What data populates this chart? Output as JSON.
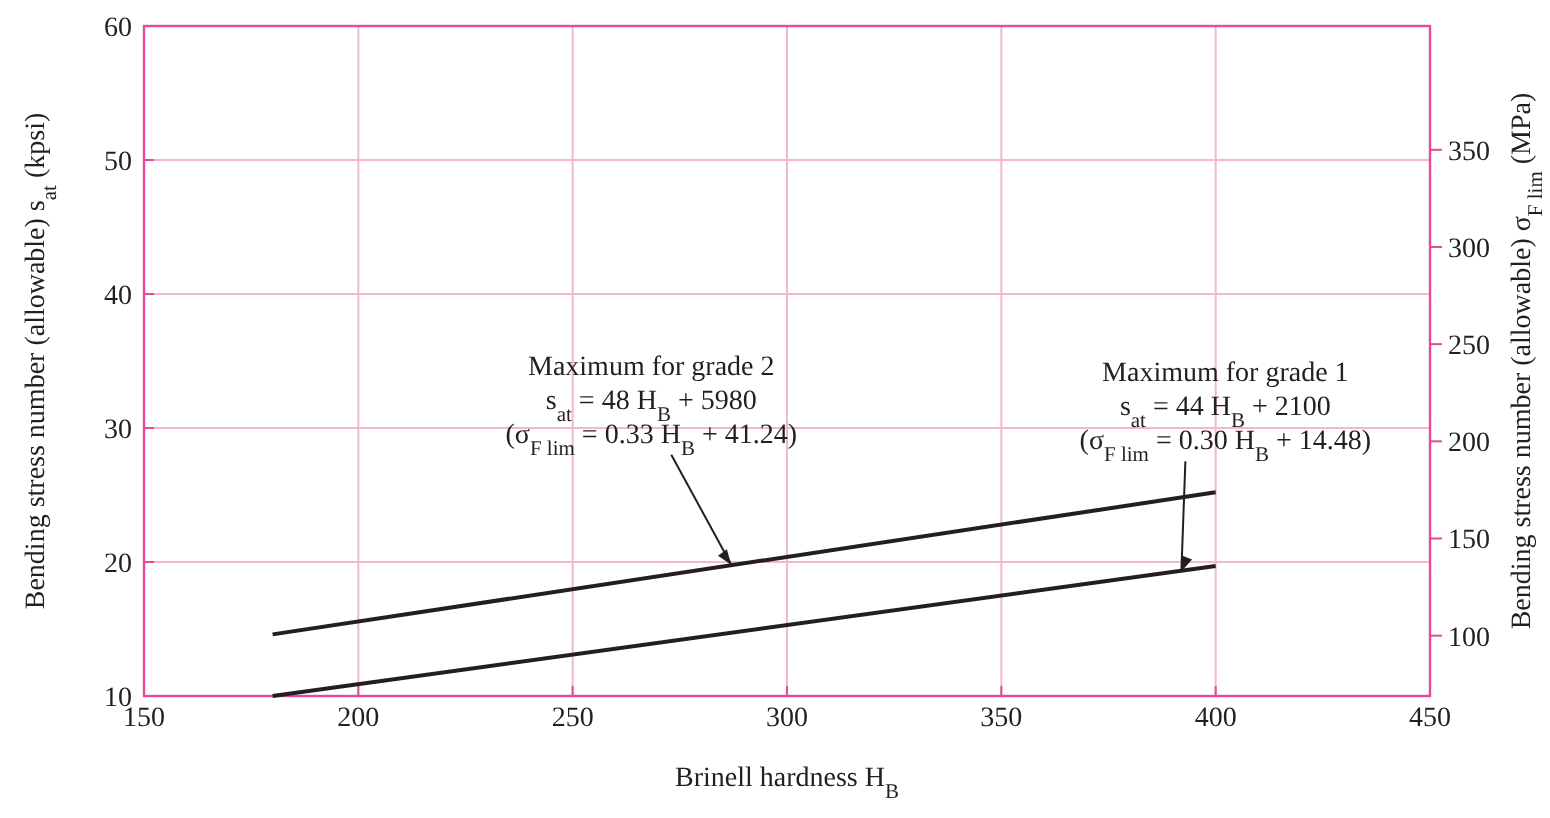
{
  "chart_data": {
    "type": "line",
    "xlabel": "Brinell hardness H$_{B}$",
    "ylabel": "Bending stress number (allowable) s$_{at}$ (kpsi)",
    "y2label": "Bending stress number (allowable) σ$_{F lim}$ (MPa)",
    "xlim": [
      150,
      450
    ],
    "xticks": [
      150,
      200,
      250,
      300,
      350,
      400,
      450
    ],
    "ylim": [
      10,
      60
    ],
    "yticks": [
      10,
      20,
      30,
      40,
      50,
      60
    ],
    "y2lim": [
      68.95,
      413.7
    ],
    "y2ticks": [
      100,
      150,
      200,
      250,
      300,
      350
    ],
    "grid": true,
    "marker": "none",
    "line_style": "solid",
    "x": [
      180,
      400
    ],
    "series": [
      {
        "color": "#231f20",
        "values": [
          14.6,
          25.2
        ]
      },
      {
        "color": "#231f20",
        "values": [
          10.0,
          19.7
        ]
      }
    ],
    "annotations": [
      "Maximum for grade 2",
      "s$_{at}$ = 48 H$_{B}$ + 5980",
      {
        "text": "(σ$_{F lim}$ = 0.33 H$_{B}$ + 41.24)",
        "x": 287,
        "y": 19.8
      },
      "Maximum for grade 1",
      "s$_{at}$ = 44 H$_{B}$ + 2100",
      {
        "text": "(σ$_{F lim}$ = 0.30 H$_{B}$ + 14.48)",
        "x": 392,
        "y": 19.3
      }
    ]
  }
}
